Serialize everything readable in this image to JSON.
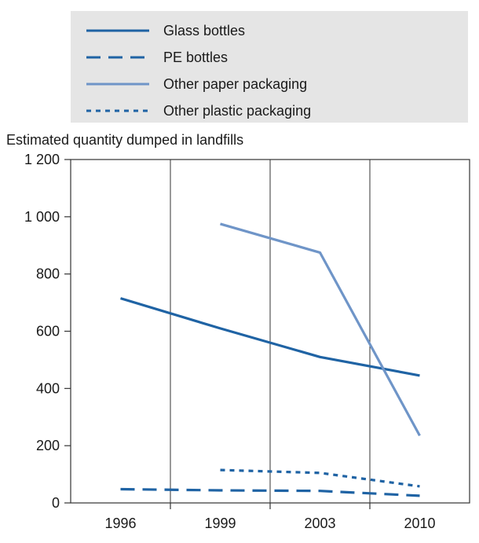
{
  "chart_data": {
    "type": "line",
    "title": "",
    "ylabel": "Estimated quantity dumped in landfills",
    "xlabel": "",
    "categories": [
      "1996",
      "1999",
      "2003",
      "2010"
    ],
    "ylim": [
      0,
      1200
    ],
    "yticks": [
      0,
      200,
      400,
      600,
      800,
      1000,
      1200
    ],
    "ytick_labels": [
      "0",
      "200",
      "400",
      "600",
      "800",
      "1 000",
      "1 200"
    ],
    "grid": false,
    "legend_position": "top",
    "series": [
      {
        "name": "Glass bottles",
        "style": "solid",
        "color": "#1f63a4",
        "values": [
          715,
          610,
          510,
          445
        ]
      },
      {
        "name": "PE bottles",
        "style": "dashed",
        "color": "#1f63a4",
        "values": [
          48,
          44,
          42,
          25
        ]
      },
      {
        "name": "Other paper packaging",
        "style": "solid",
        "color": "#6f95c8",
        "values": [
          null,
          975,
          875,
          235
        ]
      },
      {
        "name": "Other plastic packaging",
        "style": "dotted",
        "color": "#1f63a4",
        "values": [
          null,
          115,
          105,
          58
        ]
      }
    ]
  }
}
